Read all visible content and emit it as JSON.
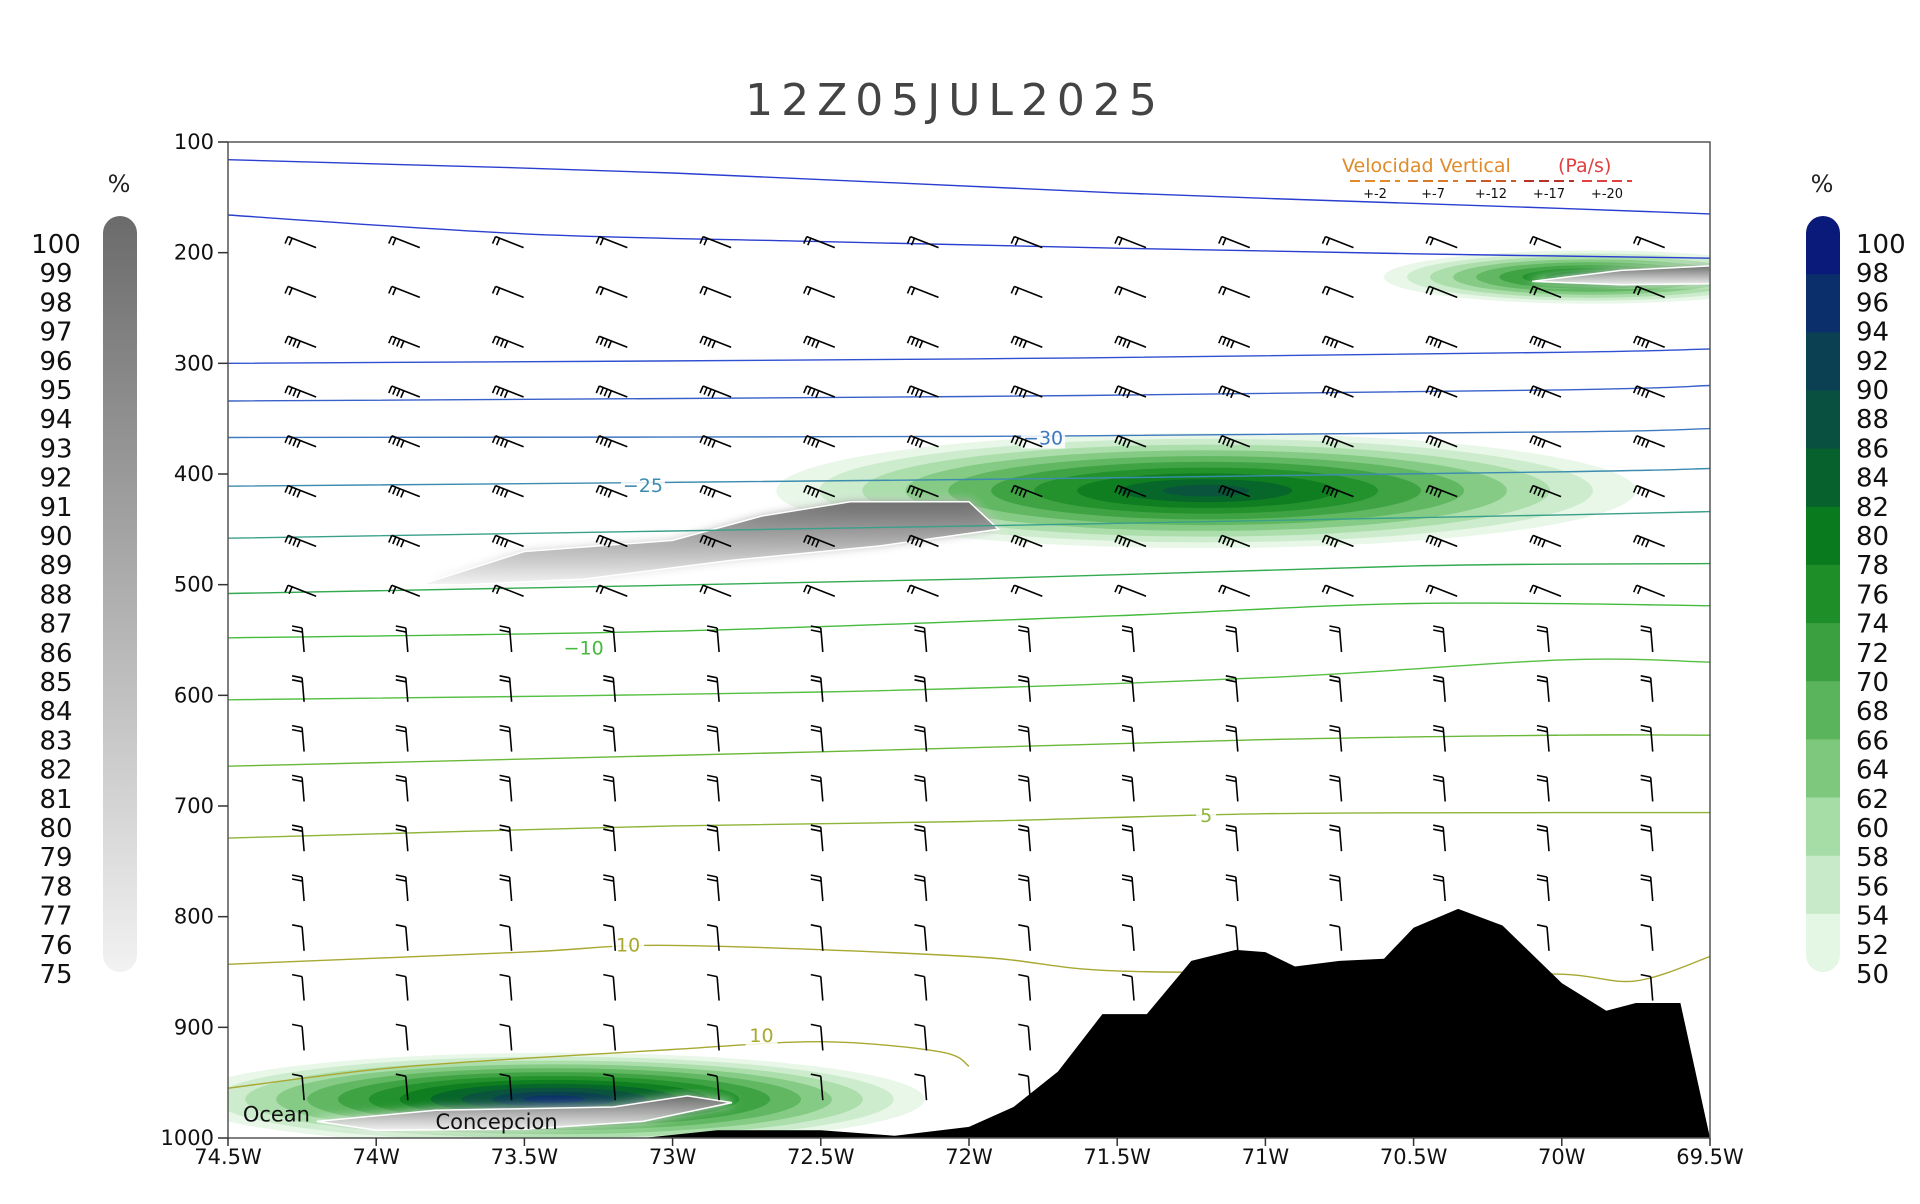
{
  "chart_data": {
    "type": "contour",
    "title": "12Z05JUL2025",
    "x_ticks": [
      "74.5W",
      "74W",
      "73.5W",
      "73W",
      "72.5W",
      "72W",
      "71.5W",
      "71W",
      "70.5W",
      "70W",
      "69.5W"
    ],
    "x_range": [
      -74.5,
      -69.5
    ],
    "y_ticks": [
      100,
      200,
      300,
      400,
      500,
      600,
      700,
      800,
      900,
      1000
    ],
    "y_range": [
      100,
      1000
    ],
    "y_inverted": true,
    "grid": false,
    "legend": {
      "title": "Velocidad Vertical",
      "unit": "(Pa/s)",
      "placement": "top-right",
      "entries": [
        {
          "label": "+-2",
          "color": "#e08a28"
        },
        {
          "label": "+-7",
          "color": "#d97a2a"
        },
        {
          "label": "+-12",
          "color": "#c85a28"
        },
        {
          "label": "+-17",
          "color": "#b8322a"
        },
        {
          "label": "+-20",
          "color": "#e04040"
        }
      ]
    },
    "left_colorbar": {
      "unit": "%",
      "color_top": "#6b6b6b",
      "color_bottom": "#f2f2f2",
      "labels": [
        100,
        99,
        98,
        97,
        96,
        95,
        94,
        93,
        92,
        91,
        90,
        89,
        88,
        87,
        86,
        85,
        84,
        83,
        82,
        81,
        80,
        79,
        78,
        77,
        76,
        75
      ]
    },
    "right_colorbar": {
      "unit": "%",
      "colors": [
        "#0a1a7a",
        "#0b2f6a",
        "#0b3f52",
        "#0a5040",
        "#06612c",
        "#0a7a1e",
        "#1e8f28",
        "#3aa040",
        "#5ab45c",
        "#7ec87e",
        "#a6dca6",
        "#c8eac8",
        "#e4f6e4"
      ],
      "labels": [
        100,
        98,
        96,
        94,
        92,
        90,
        88,
        86,
        84,
        82,
        80,
        78,
        76,
        74,
        72,
        70,
        68,
        66,
        64,
        62,
        60,
        58,
        56,
        54,
        52,
        50
      ]
    },
    "temperature_contours": [
      {
        "value": null,
        "color": "#2a3fcf",
        "points": [
          [
            -74.5,
            116
          ],
          [
            -73.0,
            128
          ],
          [
            -71.5,
            146
          ],
          [
            -70.0,
            160
          ],
          [
            -69.5,
            165
          ]
        ]
      },
      {
        "value": null,
        "color": "#2a3fcf",
        "points": [
          [
            -74.5,
            166
          ],
          [
            -73.5,
            183
          ],
          [
            -72.5,
            190
          ],
          [
            -71.5,
            196
          ],
          [
            -70.5,
            201
          ],
          [
            -69.5,
            205
          ]
        ]
      },
      {
        "value": null,
        "color": "#2f50d0",
        "points": [
          [
            -74.5,
            300
          ],
          [
            -72.0,
            296
          ],
          [
            -70.0,
            290
          ],
          [
            -69.5,
            287
          ]
        ]
      },
      {
        "value": null,
        "color": "#3860c8",
        "points": [
          [
            -74.5,
            334
          ],
          [
            -72.0,
            330
          ],
          [
            -70.0,
            324
          ],
          [
            -69.5,
            320
          ]
        ]
      },
      {
        "value": -30,
        "color": "#3f78c0",
        "label_at": [
          -71.75,
          367
        ],
        "points": [
          [
            -74.5,
            367
          ],
          [
            -72.0,
            366
          ],
          [
            -70.0,
            362
          ],
          [
            -69.5,
            359
          ]
        ]
      },
      {
        "value": -25,
        "color": "#3d8cb0",
        "label_at": [
          -73.1,
          410
        ],
        "points": [
          [
            -74.5,
            411
          ],
          [
            -72.0,
            405
          ],
          [
            -70.0,
            398
          ],
          [
            -69.5,
            395
          ]
        ]
      },
      {
        "value": null,
        "color": "#3aa08a",
        "points": [
          [
            -74.5,
            458
          ],
          [
            -72.0,
            447
          ],
          [
            -70.0,
            437
          ],
          [
            -69.5,
            434
          ]
        ]
      },
      {
        "value": null,
        "color": "#33aa50",
        "points": [
          [
            -74.5,
            508
          ],
          [
            -72.0,
            495
          ],
          [
            -70.5,
            483
          ],
          [
            -69.5,
            481
          ]
        ]
      },
      {
        "value": -10,
        "color": "#44bb3c",
        "label_at": [
          -73.3,
          557
        ],
        "points": [
          [
            -74.5,
            548
          ],
          [
            -73.0,
            542
          ],
          [
            -71.5,
            528
          ],
          [
            -70.5,
            517
          ],
          [
            -69.5,
            519
          ]
        ]
      },
      {
        "value": null,
        "color": "#56c044",
        "points": [
          [
            -74.5,
            604
          ],
          [
            -72.5,
            597
          ],
          [
            -71.0,
            584
          ],
          [
            -70.0,
            568
          ],
          [
            -69.5,
            570
          ]
        ]
      },
      {
        "value": null,
        "color": "#6ab838",
        "points": [
          [
            -74.5,
            664
          ],
          [
            -72.5,
            651
          ],
          [
            -71.0,
            640
          ],
          [
            -70.0,
            636
          ],
          [
            -69.5,
            636
          ]
        ]
      },
      {
        "value": 5,
        "color": "#8eb438",
        "label_at": [
          -71.2,
          708
        ],
        "points": [
          [
            -74.5,
            729
          ],
          [
            -73.0,
            718
          ],
          [
            -72.0,
            714
          ],
          [
            -71.0,
            707
          ],
          [
            -70.0,
            706
          ],
          [
            -69.5,
            706
          ]
        ]
      },
      {
        "value": 10,
        "color": "#a8a832",
        "label_at": [
          -73.15,
          825
        ],
        "points": [
          [
            -74.5,
            843
          ],
          [
            -73.5,
            832
          ],
          [
            -73.0,
            826
          ],
          [
            -72.0,
            836
          ],
          [
            -71.5,
            849
          ],
          [
            -70.5,
            851
          ],
          [
            -70.0,
            852
          ],
          [
            -69.75,
            858
          ],
          [
            -69.5,
            836
          ]
        ]
      },
      {
        "value": 10,
        "color": "#a8a832",
        "label_at": [
          -72.7,
          907
        ],
        "points": [
          [
            -74.5,
            955
          ],
          [
            -74.0,
            938
          ],
          [
            -73.5,
            928
          ],
          [
            -73.0,
            920
          ],
          [
            -72.5,
            913
          ],
          [
            -72.1,
            922
          ],
          [
            -72.0,
            935
          ]
        ]
      }
    ],
    "humidity_regions": [
      {
        "name": "upper-band",
        "center": [
          -71.2,
          415
        ],
        "radius": [
          1.45,
          52
        ],
        "max": 88
      },
      {
        "name": "upper-right",
        "center": [
          -69.9,
          222
        ],
        "radius": [
          0.7,
          24
        ],
        "max": 84
      },
      {
        "name": "lower-band",
        "center": [
          -73.4,
          965
        ],
        "radius": [
          1.25,
          42
        ],
        "max": 96
      }
    ],
    "saturation_regions": [
      {
        "name": "upper-core",
        "points": [
          [
            -73.85,
            500
          ],
          [
            -73.5,
            470
          ],
          [
            -73.0,
            460
          ],
          [
            -72.7,
            438
          ],
          [
            -72.4,
            425
          ],
          [
            -72.0,
            425
          ],
          [
            -71.9,
            450
          ],
          [
            -72.3,
            465
          ],
          [
            -72.8,
            478
          ],
          [
            -73.3,
            495
          ],
          [
            -73.7,
            500
          ]
        ]
      },
      {
        "name": "upper-right-core",
        "points": [
          [
            -70.1,
            226
          ],
          [
            -69.8,
            216
          ],
          [
            -69.5,
            212
          ],
          [
            -69.5,
            228
          ],
          [
            -69.8,
            229
          ]
        ]
      },
      {
        "name": "lower-core",
        "points": [
          [
            -74.2,
            985
          ],
          [
            -73.8,
            975
          ],
          [
            -73.2,
            972
          ],
          [
            -72.95,
            962
          ],
          [
            -72.8,
            968
          ],
          [
            -73.1,
            985
          ],
          [
            -73.5,
            992
          ],
          [
            -74.0,
            993
          ]
        ]
      }
    ],
    "wind_barbs": {
      "x_start": -74.25,
      "x_step": 0.35,
      "y_start": 190,
      "y_step": 45,
      "columns": 14,
      "rows": 18
    },
    "terrain": {
      "color": "#000000",
      "points": [
        [
          -73.1,
          1000
        ],
        [
          -72.85,
          993
        ],
        [
          -72.5,
          993
        ],
        [
          -72.25,
          998
        ],
        [
          -72.0,
          990
        ],
        [
          -71.85,
          972
        ],
        [
          -71.7,
          940
        ],
        [
          -71.55,
          888
        ],
        [
          -71.4,
          888
        ],
        [
          -71.25,
          840
        ],
        [
          -71.1,
          830
        ],
        [
          -71.0,
          832
        ],
        [
          -70.9,
          845
        ],
        [
          -70.75,
          840
        ],
        [
          -70.6,
          838
        ],
        [
          -70.5,
          810
        ],
        [
          -70.35,
          793
        ],
        [
          -70.2,
          808
        ],
        [
          -70.0,
          860
        ],
        [
          -69.85,
          885
        ],
        [
          -69.75,
          878
        ],
        [
          -69.6,
          878
        ],
        [
          -69.5,
          1000
        ]
      ]
    },
    "place_labels": [
      {
        "text": "Ocean",
        "x": -74.45,
        "y": 985
      },
      {
        "text": "Concepcion",
        "x": -73.8,
        "y": 992
      }
    ]
  }
}
